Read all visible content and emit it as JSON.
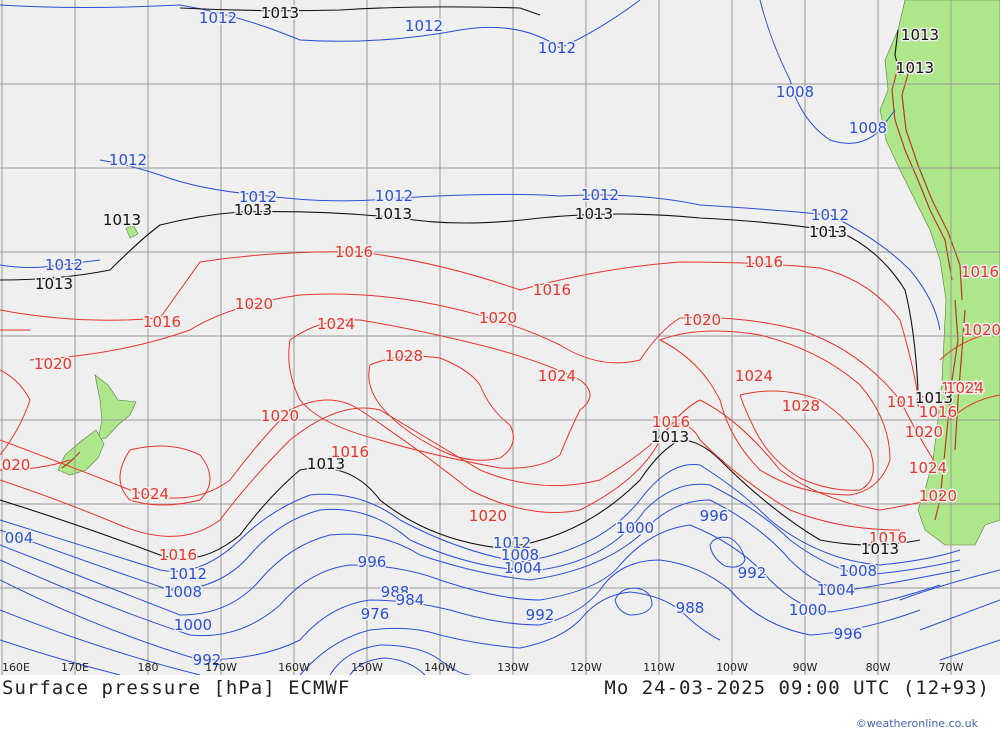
{
  "map": {
    "title_left": "Surface pressure [hPa] ECMWF",
    "title_right": "Mo 24-03-2025 09:00 UTC (12+93)",
    "credit": "©weatheronline.co.uk",
    "longitude_labels": [
      "160E",
      "170E",
      "180",
      "170W",
      "160W",
      "150W",
      "140W",
      "130W",
      "120W",
      "110W",
      "100W",
      "90W",
      "80W",
      "70W"
    ],
    "colors": {
      "sea": "#efefef",
      "land": "#aee68a",
      "grid": "#9a9a9a",
      "isobar_low": "#2b4fd6",
      "isobar_standard": "#111111",
      "isobar_high": "#e8352a",
      "relief": "#b83a2a"
    },
    "isobar_labels": [
      {
        "value": "1012"
      },
      {
        "value": "1013"
      },
      {
        "value": "1012"
      },
      {
        "value": "1012"
      },
      {
        "value": "1013"
      },
      {
        "value": "1013"
      },
      {
        "value": "1008"
      },
      {
        "value": "1008"
      },
      {
        "value": "1012"
      },
      {
        "value": "1013"
      },
      {
        "value": "1012"
      },
      {
        "value": "1013"
      },
      {
        "value": "1012"
      },
      {
        "value": "1013"
      },
      {
        "value": "1012"
      },
      {
        "value": "1013"
      },
      {
        "value": "1012"
      },
      {
        "value": "1013"
      },
      {
        "value": "1012"
      },
      {
        "value": "1013"
      },
      {
        "value": "1016"
      },
      {
        "value": "1016"
      },
      {
        "value": "1016"
      },
      {
        "value": "1016"
      },
      {
        "value": "1016"
      },
      {
        "value": "1020"
      },
      {
        "value": "1020"
      },
      {
        "value": "1020"
      },
      {
        "value": "1020"
      },
      {
        "value": "1024"
      },
      {
        "value": "1028"
      },
      {
        "value": "1024"
      },
      {
        "value": "1024"
      },
      {
        "value": "1028"
      },
      {
        "value": "1020"
      },
      {
        "value": "1024"
      },
      {
        "value": "1016"
      },
      {
        "value": "1013"
      },
      {
        "value": "1013"
      },
      {
        "value": "1016"
      },
      {
        "value": "1020"
      },
      {
        "value": "1024"
      },
      {
        "value": "1020"
      },
      {
        "value": "1016"
      },
      {
        "value": "1013"
      },
      {
        "value": "1020"
      },
      {
        "value": "1012"
      },
      {
        "value": "1008"
      },
      {
        "value": "1004"
      },
      {
        "value": "1000"
      },
      {
        "value": "996"
      },
      {
        "value": "996"
      },
      {
        "value": "992"
      },
      {
        "value": "988"
      },
      {
        "value": "1008"
      },
      {
        "value": "1004"
      },
      {
        "value": "1000"
      },
      {
        "value": "996"
      },
      {
        "value": "988"
      },
      {
        "value": "984"
      },
      {
        "value": "976"
      },
      {
        "value": "992"
      },
      {
        "value": "1016"
      },
      {
        "value": "1012"
      },
      {
        "value": "1008"
      },
      {
        "value": "1000"
      },
      {
        "value": "992"
      },
      {
        "value": "004"
      },
      {
        "value": "020"
      },
      {
        "value": "1024"
      },
      {
        "value": "1016"
      },
      {
        "value": "1013"
      },
      {
        "value": "1016"
      },
      {
        "value": "1020"
      },
      {
        "value": "1024"
      }
    ]
  }
}
